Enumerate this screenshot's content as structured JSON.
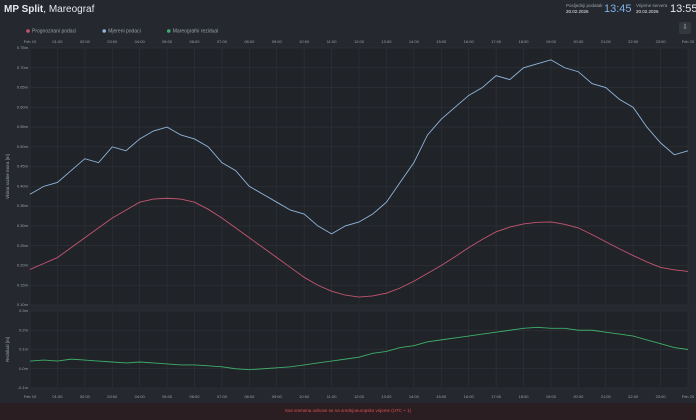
{
  "header": {
    "title_bold": "MP Split",
    "title_rest": ", Mareograf",
    "last_label": "Posljednji podatak",
    "last_date": "20.02.2026",
    "last_time": "13:45",
    "server_label": "Vrijeme servera",
    "server_date": "20.02.2026",
    "server_time": "13:55"
  },
  "footer": {
    "note": "Sva vremena odnose se na srednjoeuropsko vrijeme (UTC + 1)"
  },
  "chart_data": [
    {
      "type": "line",
      "y_label": "Visina razine mora [m]",
      "grid": true,
      "x": [
        0,
        0.5,
        1,
        1.5,
        2,
        2.5,
        3,
        3.5,
        4,
        4.5,
        5,
        5.5,
        6,
        6.5,
        7,
        7.5,
        8,
        8.5,
        9,
        9.5,
        10,
        10.5,
        11,
        11.5,
        12,
        12.5,
        13,
        13.5,
        14,
        14.5,
        15,
        15.5,
        16,
        16.5,
        17,
        17.5,
        18,
        18.5,
        19,
        19.5,
        20,
        20.5,
        21,
        21.5,
        22,
        22.5,
        23,
        23.5,
        24
      ],
      "xlim": [
        0,
        24
      ],
      "xticks": [
        {
          "value": 0,
          "label": "Feb 19"
        },
        {
          "value": 1,
          "label": "01:00"
        },
        {
          "value": 2,
          "label": "02:00"
        },
        {
          "value": 3,
          "label": "03:00"
        },
        {
          "value": 4,
          "label": "04:00"
        },
        {
          "value": 5,
          "label": "05:00"
        },
        {
          "value": 6,
          "label": "06:00"
        },
        {
          "value": 7,
          "label": "07:00"
        },
        {
          "value": 8,
          "label": "08:00"
        },
        {
          "value": 9,
          "label": "09:00"
        },
        {
          "value": 10,
          "label": "10:00"
        },
        {
          "value": 11,
          "label": "11:00"
        },
        {
          "value": 12,
          "label": "12:00"
        },
        {
          "value": 13,
          "label": "13:00"
        },
        {
          "value": 14,
          "label": "14:00"
        },
        {
          "value": 15,
          "label": "15:00"
        },
        {
          "value": 16,
          "label": "16:00"
        },
        {
          "value": 17,
          "label": "17:00"
        },
        {
          "value": 18,
          "label": "18:00"
        },
        {
          "value": 19,
          "label": "19:00"
        },
        {
          "value": 20,
          "label": "20:00"
        },
        {
          "value": 21,
          "label": "21:00"
        },
        {
          "value": 22,
          "label": "22:00"
        },
        {
          "value": 23,
          "label": "23:00"
        },
        {
          "value": 24,
          "label": "Feb 20"
        }
      ],
      "ylim": [
        0.1,
        0.75
      ],
      "yticks": [
        {
          "value": 0.75,
          "label": "0.75m"
        },
        {
          "value": 0.7,
          "label": "0.70m"
        },
        {
          "value": 0.65,
          "label": "0.65m"
        },
        {
          "value": 0.6,
          "label": "0.60m"
        },
        {
          "value": 0.55,
          "label": "0.55m"
        },
        {
          "value": 0.5,
          "label": "0.50m"
        },
        {
          "value": 0.45,
          "label": "0.45m"
        },
        {
          "value": 0.4,
          "label": "0.40m"
        },
        {
          "value": 0.35,
          "label": "0.35m"
        },
        {
          "value": 0.3,
          "label": "0.30m"
        },
        {
          "value": 0.25,
          "label": "0.25m"
        },
        {
          "value": 0.2,
          "label": "0.20m"
        },
        {
          "value": 0.15,
          "label": "0.15m"
        },
        {
          "value": 0.1,
          "label": "0.10m"
        }
      ],
      "series": [
        {
          "name": "Prognozirani podaci",
          "color": "#c4566f",
          "values": [
            0.19,
            0.205,
            0.22,
            0.245,
            0.27,
            0.295,
            0.32,
            0.34,
            0.36,
            0.368,
            0.37,
            0.368,
            0.36,
            0.342,
            0.32,
            0.295,
            0.27,
            0.245,
            0.22,
            0.195,
            0.17,
            0.15,
            0.135,
            0.125,
            0.12,
            0.123,
            0.13,
            0.143,
            0.16,
            0.18,
            0.2,
            0.222,
            0.245,
            0.266,
            0.285,
            0.297,
            0.305,
            0.309,
            0.31,
            0.304,
            0.295,
            0.278,
            0.26,
            0.242,
            0.225,
            0.209,
            0.195,
            0.189,
            0.185
          ]
        },
        {
          "name": "Mjereni podaci",
          "color": "#8fb6de",
          "values": [
            0.38,
            0.4,
            0.41,
            0.44,
            0.47,
            0.46,
            0.5,
            0.49,
            0.52,
            0.54,
            0.55,
            0.53,
            0.52,
            0.5,
            0.46,
            0.44,
            0.4,
            0.38,
            0.36,
            0.34,
            0.33,
            0.3,
            0.28,
            0.3,
            0.31,
            0.33,
            0.36,
            0.41,
            0.46,
            0.53,
            0.57,
            0.6,
            0.63,
            0.65,
            0.68,
            0.67,
            0.7,
            0.71,
            0.72,
            0.7,
            0.69,
            0.66,
            0.65,
            0.62,
            0.6,
            0.55,
            0.51,
            0.48,
            0.49
          ]
        }
      ]
    },
    {
      "type": "line",
      "y_label": "Rezidual [m]",
      "grid": true,
      "x": [
        0,
        0.5,
        1,
        1.5,
        2,
        2.5,
        3,
        3.5,
        4,
        4.5,
        5,
        5.5,
        6,
        6.5,
        7,
        7.5,
        8,
        8.5,
        9,
        9.5,
        10,
        10.5,
        11,
        11.5,
        12,
        12.5,
        13,
        13.5,
        14,
        14.5,
        15,
        15.5,
        16,
        16.5,
        17,
        17.5,
        18,
        18.5,
        19,
        19.5,
        20,
        20.5,
        21,
        21.5,
        22,
        22.5,
        23,
        23.5,
        24
      ],
      "xlim": [
        0,
        24
      ],
      "xticks": [
        {
          "value": 0,
          "label": "Feb 19"
        },
        {
          "value": 1,
          "label": "01:00"
        },
        {
          "value": 2,
          "label": "02:00"
        },
        {
          "value": 3,
          "label": "03:00"
        },
        {
          "value": 4,
          "label": "04:00"
        },
        {
          "value": 5,
          "label": "05:00"
        },
        {
          "value": 6,
          "label": "06:00"
        },
        {
          "value": 7,
          "label": "07:00"
        },
        {
          "value": 8,
          "label": "08:00"
        },
        {
          "value": 9,
          "label": "09:00"
        },
        {
          "value": 10,
          "label": "10:00"
        },
        {
          "value": 11,
          "label": "11:00"
        },
        {
          "value": 12,
          "label": "12:00"
        },
        {
          "value": 13,
          "label": "13:00"
        },
        {
          "value": 14,
          "label": "14:00"
        },
        {
          "value": 15,
          "label": "15:00"
        },
        {
          "value": 16,
          "label": "16:00"
        },
        {
          "value": 17,
          "label": "17:00"
        },
        {
          "value": 18,
          "label": "18:00"
        },
        {
          "value": 19,
          "label": "19:00"
        },
        {
          "value": 20,
          "label": "20:00"
        },
        {
          "value": 21,
          "label": "21:00"
        },
        {
          "value": 22,
          "label": "22:00"
        },
        {
          "value": 23,
          "label": "23:00"
        },
        {
          "value": 24,
          "label": "Feb 20"
        }
      ],
      "ylim": [
        -0.1,
        0.3
      ],
      "yticks": [
        {
          "value": 0.3,
          "label": "0.3m"
        },
        {
          "value": 0.2,
          "label": "0.2m"
        },
        {
          "value": 0.1,
          "label": "0.1m"
        },
        {
          "value": 0,
          "label": "0.0m"
        },
        {
          "value": -0.1,
          "label": "-0.1m"
        }
      ],
      "series": [
        {
          "name": "Mareografni rezidual",
          "color": "#3fae6b",
          "values": [
            0.04,
            0.045,
            0.04,
            0.05,
            0.045,
            0.04,
            0.035,
            0.03,
            0.035,
            0.03,
            0.025,
            0.02,
            0.02,
            0.015,
            0.01,
            0,
            -0.005,
            0,
            0.005,
            0.01,
            0.02,
            0.03,
            0.04,
            0.05,
            0.06,
            0.08,
            0.09,
            0.11,
            0.12,
            0.14,
            0.15,
            0.16,
            0.17,
            0.18,
            0.19,
            0.2,
            0.21,
            0.215,
            0.21,
            0.21,
            0.2,
            0.2,
            0.19,
            0.18,
            0.17,
            0.15,
            0.13,
            0.11,
            0.1
          ]
        }
      ]
    }
  ]
}
